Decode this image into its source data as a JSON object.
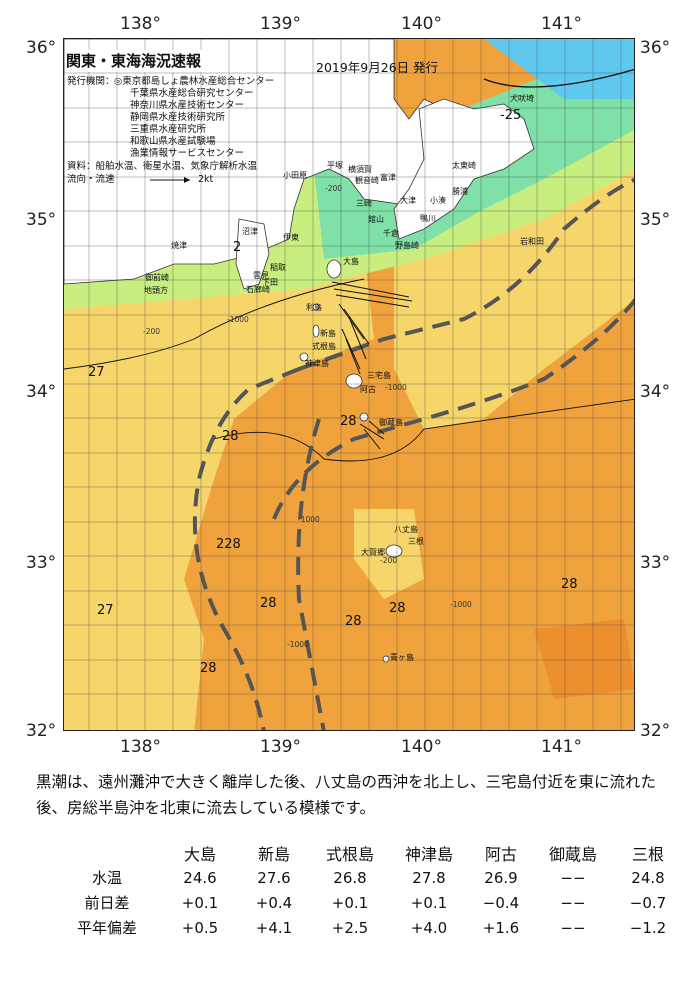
{
  "map": {
    "title": "関東・東海海況速報",
    "date": "2019年9月26日 発行",
    "legend": {
      "org_label": "発行機関：",
      "orgs": [
        "◎東京都島しょ農林水産総合センター",
        "千葉県水産総合研究センター",
        "神奈川県水産技術センター",
        "静岡県水産技術研究所",
        "三重県水産研究所",
        "和歌山県水産試験場",
        "漁業情報サービスセンター"
      ],
      "data_label": "資料：船舶水温、衛星水温、気象庁解析水温",
      "flow_label": "流向・流速",
      "flow_scale": "2kt"
    },
    "lon_labels": [
      "138°",
      "139°",
      "140°",
      "141°"
    ],
    "lat_labels": [
      "36°",
      "35°",
      "34°",
      "33°",
      "32°"
    ],
    "places": {
      "odawara": "小田原",
      "hiratsuka": "平塚",
      "yokosuka": "横須賀",
      "kannonzaki": "観音崎",
      "futtsu": "富津",
      "kamogawa": "鴨川",
      "kozu_h": "大津",
      "miura": "三崎",
      "tateyama": "館山",
      "chikura": "千倉",
      "nojimazaki": "野島崎",
      "numazu": "沼津",
      "ito": "伊東",
      "yaizu": "焼津",
      "omaezaki": "御前崎",
      "chikyumisaki": "地頭方",
      "inatori": "稲取",
      "shimoda": "下田",
      "kumomi": "雲見",
      "irozaki": "石廊崎",
      "oshima": "大島",
      "toshima": "利島",
      "niijima": "新島",
      "shikinejima": "式根島",
      "kozushima": "神津島",
      "miyakejima": "三宅島",
      "mikurajima": "御蔵島",
      "ako": "阿古",
      "hachijojima": "八丈島",
      "mine": "三根",
      "taisho": "大賀郷",
      "aogashima": "青ヶ島",
      "katsuura": "勝浦",
      "taito": "太東崎",
      "kozaki": "小湊",
      "inubo": "犬吠埼",
      "izumo": "岩和田"
    },
    "temps": [
      "-25",
      "27",
      "28",
      "28",
      "228",
      "28",
      "28",
      "28",
      "27",
      "28",
      "28",
      "2"
    ],
    "depth_labels": [
      "-200",
      "-1000",
      "-200",
      "-1000",
      "-1000",
      "-200",
      "-1000",
      "-1000",
      "-200",
      "-1000",
      "-200",
      "-1000",
      "-200",
      "-1000",
      "-1000"
    ]
  },
  "description": "黒潮は、遠州灘沖で大きく離岸した後、八丈島の西沖を北上し、三宅島付近を東に流れた後、房総半島沖を北東に流去している模様です。",
  "stats": {
    "columns": [
      "大島",
      "新島",
      "式根島",
      "神津島",
      "阿古",
      "御蔵島",
      "三根"
    ],
    "rows": [
      {
        "label": "水温",
        "values": [
          "24.6",
          "27.6",
          "26.8",
          "27.8",
          "26.9",
          "−−",
          "24.8"
        ]
      },
      {
        "label": "前日差",
        "values": [
          "+0.1",
          "+0.4",
          "+0.1",
          "+0.1",
          "−0.4",
          "−−",
          "−0.7"
        ]
      },
      {
        "label": "平年偏差",
        "values": [
          "+0.5",
          "+4.1",
          "+2.5",
          "+4.0",
          "+1.6",
          "−−",
          "−1.2"
        ]
      }
    ]
  },
  "colors": {
    "land": "#ffffff",
    "t_low": "#5fc8ee",
    "t_cool": "#7fe0a8",
    "t_mid": "#c8ee80",
    "t_warm": "#f6d66a",
    "t_hot": "#f0a33c",
    "kuroshio": "#555555"
  }
}
